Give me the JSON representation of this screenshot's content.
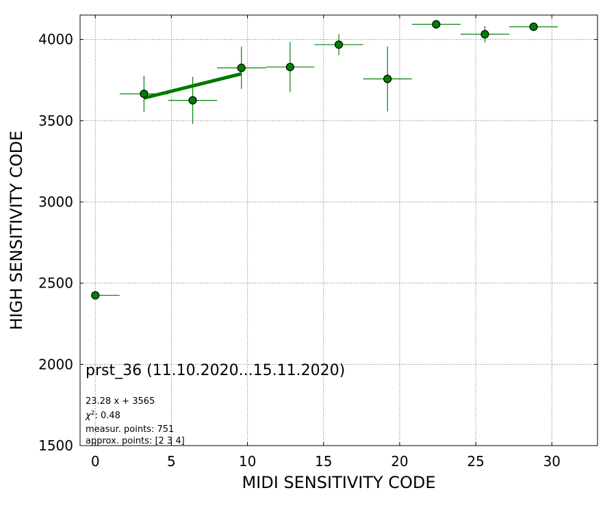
{
  "chart_data": {
    "type": "scatter",
    "title": "",
    "xlabel": "MIDI SENSITIVITY CODE",
    "ylabel": "HIGH SENSITIVITY CODE",
    "xlim": [
      -1,
      33
    ],
    "ylim": [
      1500,
      4150
    ],
    "xticks": [
      0,
      5,
      10,
      15,
      20,
      25,
      30
    ],
    "yticks": [
      1500,
      2000,
      2500,
      3000,
      3500,
      4000
    ],
    "grid": true,
    "colors": {
      "marker_fill": "#008000",
      "error_bar": "#008000",
      "fit_line": "#007700"
    },
    "points": [
      {
        "x": 0.0,
        "y": 2425,
        "xerr": [
          0.0,
          1.6
        ],
        "yerr": [
          0,
          0
        ]
      },
      {
        "x": 3.2,
        "y": 3665,
        "xerr": [
          1.6,
          1.6
        ],
        "yerr": [
          110,
          110
        ]
      },
      {
        "x": 6.4,
        "y": 3625,
        "xerr": [
          1.6,
          1.6
        ],
        "yerr": [
          145,
          145
        ]
      },
      {
        "x": 9.6,
        "y": 3825,
        "xerr": [
          1.6,
          1.6
        ],
        "yerr": [
          130,
          130
        ]
      },
      {
        "x": 12.8,
        "y": 3830,
        "xerr": [
          1.6,
          1.6
        ],
        "yerr": [
          155,
          155
        ]
      },
      {
        "x": 16.0,
        "y": 3968,
        "xerr": [
          1.6,
          1.6
        ],
        "yerr": [
          65,
          65
        ]
      },
      {
        "x": 19.2,
        "y": 3757,
        "xerr": [
          1.6,
          1.6
        ],
        "yerr": [
          200,
          200
        ]
      },
      {
        "x": 22.4,
        "y": 4093,
        "xerr": [
          1.6,
          1.6
        ],
        "yerr": [
          0,
          0
        ]
      },
      {
        "x": 25.6,
        "y": 4032,
        "xerr": [
          1.6,
          1.6
        ],
        "yerr": [
          50,
          50
        ]
      },
      {
        "x": 28.8,
        "y": 4078,
        "xerr": [
          1.6,
          1.6
        ],
        "yerr": [
          0,
          0
        ]
      }
    ],
    "fit": {
      "slope": 23.28,
      "intercept": 3565,
      "x_range": [
        3.2,
        9.6
      ]
    },
    "annotations": {
      "main": "prst_36 (11.10.2020...15.11.2020)",
      "fit_equation": "23.28 x + 3565",
      "chi2_label": "χ",
      "chi2_value": ": 0.48",
      "measur_points": "measur. points: 751",
      "approx_points": "approx. points: [2 3 4]"
    }
  }
}
